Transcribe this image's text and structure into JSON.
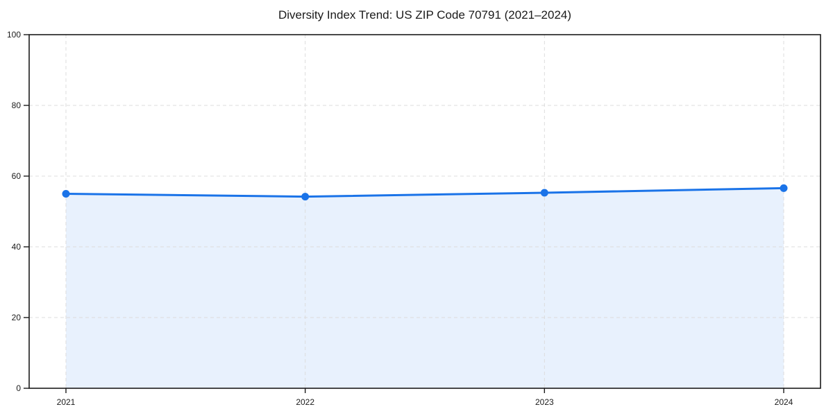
{
  "chart_data": {
    "type": "area",
    "title": "Diversity Index Trend: US ZIP Code 70791 (2021–2024)",
    "series_name": "Diversity Index",
    "categories": [
      "2021",
      "2022",
      "2023",
      "2024"
    ],
    "values": [
      55.0,
      54.2,
      55.3,
      56.6
    ],
    "xlabel": "",
    "ylabel": "",
    "ylim": [
      0,
      100
    ],
    "yticks": [
      0,
      20,
      40,
      60,
      80,
      100
    ],
    "grid": true,
    "grid_style": "dashed",
    "legend": false,
    "marker": "circle",
    "colors": {
      "line": "#1a73e8",
      "marker": "#1a73e8",
      "fill": "#e8f1fd",
      "grid": "#dcdcdc",
      "spine": "#1a1a1a",
      "tick_text": "#1a1a1a",
      "title_text": "#111111",
      "background": "#ffffff"
    }
  }
}
